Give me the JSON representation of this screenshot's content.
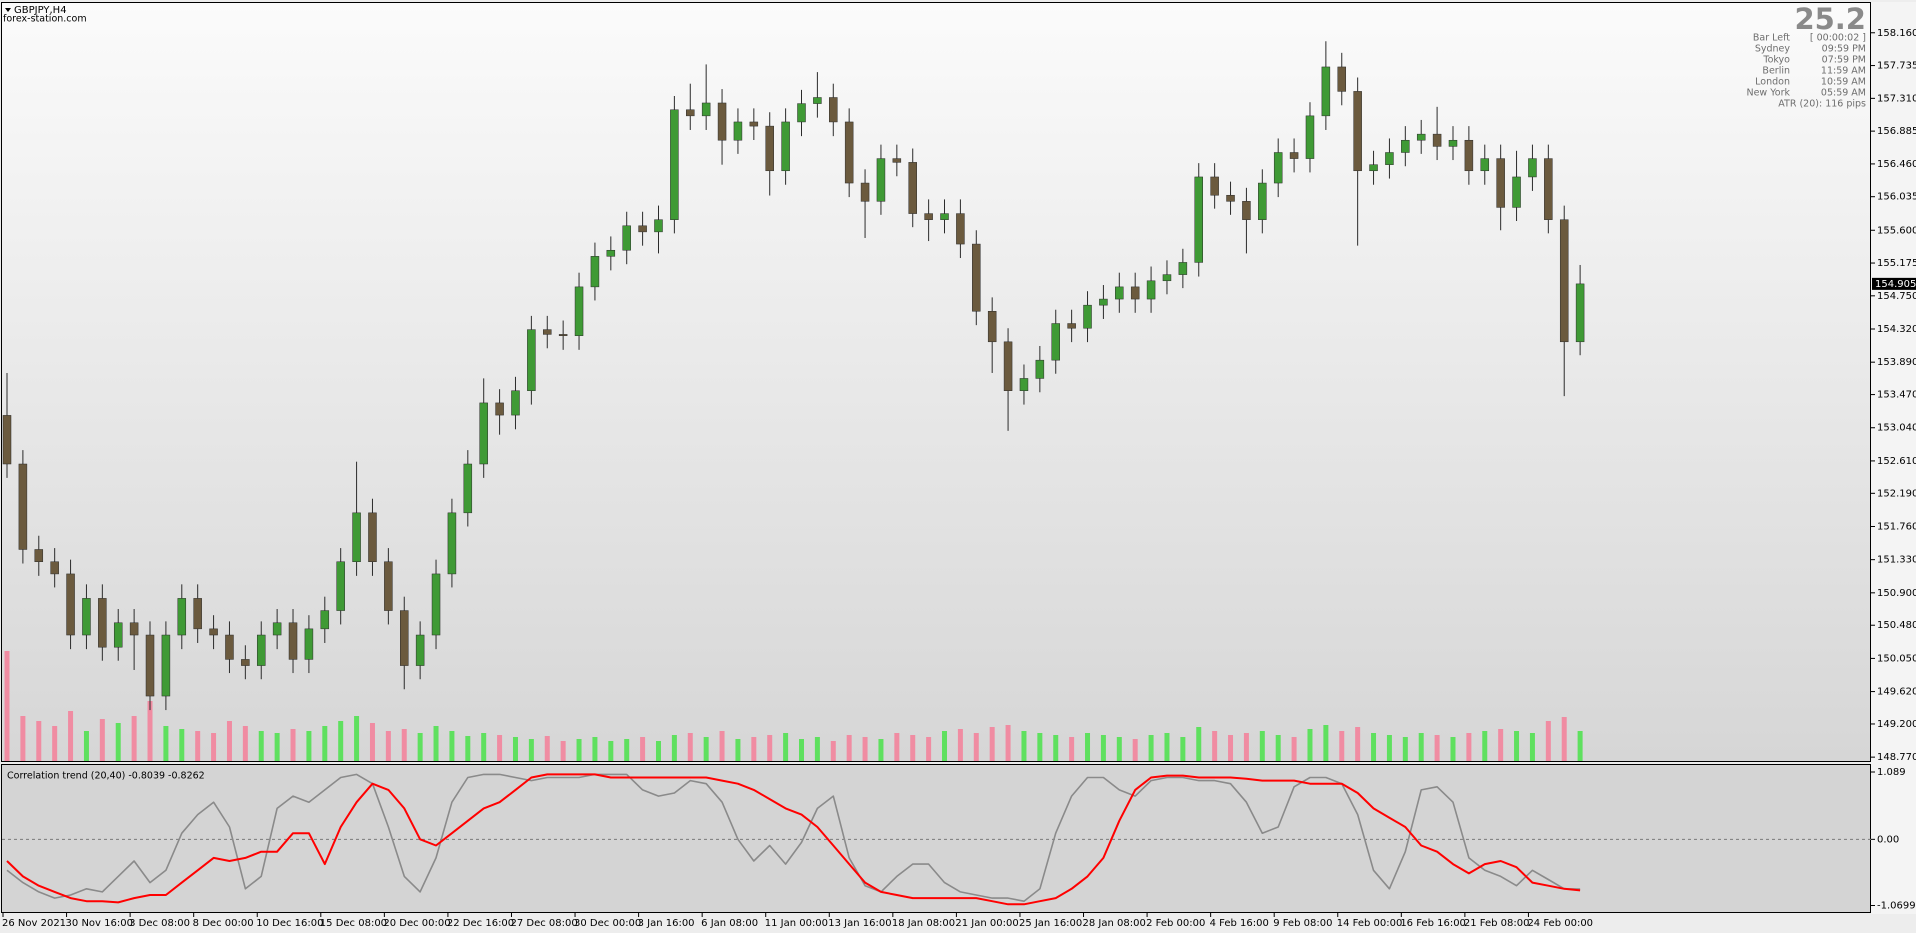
{
  "header": {
    "symbol": "GBPJPY,H4",
    "site": "forex-station.com",
    "big_value": "25.2"
  },
  "info_panel": {
    "rows": [
      [
        "Bar Left",
        "[ 00:00:02 ]"
      ],
      [
        "Sydney",
        "09:59 PM"
      ],
      [
        "Tokyo",
        "07:59 PM"
      ],
      [
        "Berlin",
        "11:59 AM"
      ],
      [
        "London",
        "10:59 AM"
      ],
      [
        "New York",
        "05:59 AM"
      ]
    ],
    "atr": "ATR (20): 116 pips"
  },
  "chart_data": [
    {
      "type": "candlestick",
      "categories": [
        "26 Nov 2021",
        null,
        null,
        null,
        "30 Nov 16:00",
        null,
        null,
        null,
        "3 Dec 08:00",
        null,
        null,
        null,
        "8 Dec 00:00",
        null,
        null,
        null,
        "10 Dec 16:00",
        null,
        null,
        null,
        "15 Dec 08:00",
        null,
        null,
        null,
        "20 Dec 00:00",
        null,
        null,
        null,
        "22 Dec 16:00",
        null,
        null,
        null,
        "27 Dec 08:00",
        null,
        null,
        null,
        "30 Dec 00:00",
        null,
        null,
        null,
        "3 Jan 16:00",
        null,
        null,
        null,
        "6 Jan 08:00",
        null,
        null,
        null,
        "11 Jan 00:00",
        null,
        null,
        null,
        "13 Jan 16:00",
        null,
        null,
        null,
        "18 Jan 08:00",
        null,
        null,
        null,
        "21 Jan 00:00",
        null,
        null,
        null,
        "25 Jan 16:00",
        null,
        null,
        null,
        "28 Jan 08:00",
        null,
        null,
        null,
        "2 Feb 00:00",
        null,
        null,
        null,
        "4 Feb 16:00",
        null,
        null,
        null,
        "9 Feb 08:00",
        null,
        null,
        null,
        "14 Feb 00:00",
        null,
        null,
        null,
        "16 Feb 16:00",
        null,
        null,
        null,
        "21 Feb 08:00",
        null,
        null,
        null,
        "24 Feb 00:00",
        null,
        null,
        null
      ],
      "open": [
        153.2,
        152.57,
        151.462,
        151.303,
        151.145,
        150.353,
        150.828,
        150.195,
        150.512,
        150.353,
        149.562,
        150.353,
        150.828,
        150.433,
        150.353,
        150.037,
        149.957,
        150.353,
        150.512,
        150.037,
        150.433,
        150.67,
        151.303,
        151.937,
        151.303,
        150.67,
        149.957,
        150.353,
        151.145,
        151.937,
        152.57,
        153.362,
        153.204,
        153.52,
        154.312,
        154.25,
        154.233,
        154.866,
        155.262,
        155.341,
        155.658,
        155.579,
        155.737,
        157.162,
        157.083,
        157.25,
        156.767,
        157.004,
        156.95,
        156.371,
        157.004,
        157.242,
        157.321,
        157.004,
        156.212,
        155.975,
        156.529,
        156.48,
        155.816,
        155.737,
        155.816,
        155.421,
        154.55,
        154.154,
        153.52,
        153.679,
        153.916,
        154.391,
        154.33,
        154.629,
        154.708,
        154.866,
        154.708,
        154.945,
        155.025,
        155.183,
        156.291,
        156.054,
        155.975,
        155.737,
        156.212,
        156.608,
        156.529,
        157.083,
        157.717,
        157.4,
        156.371,
        156.45,
        156.608,
        156.767,
        156.846,
        156.687,
        156.767,
        156.371,
        156.529,
        155.896,
        156.291,
        156.529,
        155.737,
        154.154
      ],
      "high": [
        153.75,
        152.75,
        151.64,
        151.48,
        151.33,
        151.01,
        151.01,
        150.69,
        150.69,
        150.53,
        150.53,
        151.01,
        151.01,
        150.61,
        150.53,
        150.22,
        150.53,
        150.69,
        150.69,
        150.61,
        150.85,
        151.48,
        152.6,
        152.12,
        151.48,
        150.85,
        150.53,
        151.33,
        152.12,
        152.75,
        153.68,
        153.54,
        153.7,
        154.49,
        154.49,
        154.43,
        155.05,
        155.44,
        155.52,
        155.84,
        155.84,
        155.92,
        157.34,
        157.5,
        157.75,
        157.43,
        157.18,
        157.18,
        157.13,
        157.18,
        157.42,
        157.65,
        157.5,
        157.18,
        156.39,
        156.71,
        156.71,
        156.66,
        156.0,
        156.0,
        156.0,
        155.6,
        154.73,
        154.33,
        153.86,
        154.1,
        154.57,
        154.57,
        154.81,
        154.89,
        155.05,
        155.05,
        155.13,
        155.21,
        155.36,
        156.47,
        156.47,
        156.23,
        156.15,
        156.39,
        156.79,
        156.79,
        157.26,
        158.05,
        157.9,
        157.58,
        156.63,
        156.79,
        156.95,
        157.03,
        157.2,
        156.95,
        156.95,
        156.71,
        156.71,
        156.63,
        156.71,
        156.71,
        155.92,
        155.15
      ],
      "low": [
        152.39,
        151.28,
        151.12,
        150.97,
        150.17,
        150.17,
        150.02,
        150.02,
        149.9,
        149.38,
        149.38,
        150.17,
        150.25,
        150.17,
        149.86,
        149.78,
        149.78,
        150.17,
        149.86,
        149.86,
        150.25,
        150.49,
        151.12,
        151.12,
        150.49,
        149.65,
        149.78,
        150.17,
        150.97,
        151.76,
        152.39,
        152.95,
        153.02,
        153.34,
        154.07,
        154.05,
        154.05,
        154.69,
        155.08,
        155.16,
        155.4,
        155.3,
        155.56,
        156.9,
        156.9,
        156.45,
        156.59,
        156.77,
        156.05,
        156.19,
        156.82,
        157.06,
        156.82,
        156.03,
        155.5,
        155.8,
        156.3,
        155.64,
        155.46,
        155.56,
        155.24,
        154.37,
        153.75,
        153.0,
        153.34,
        153.5,
        153.74,
        154.15,
        154.15,
        154.45,
        154.53,
        154.53,
        154.53,
        154.77,
        154.85,
        155.0,
        155.88,
        155.8,
        155.3,
        155.56,
        156.03,
        156.35,
        156.35,
        156.9,
        157.22,
        155.4,
        156.19,
        156.27,
        156.43,
        156.59,
        156.51,
        156.51,
        156.19,
        156.19,
        155.6,
        155.72,
        156.11,
        155.56,
        153.45,
        153.98
      ],
      "close": [
        152.57,
        151.462,
        151.303,
        151.145,
        150.353,
        150.828,
        150.195,
        150.512,
        150.353,
        149.562,
        150.353,
        150.828,
        150.433,
        150.353,
        150.037,
        149.957,
        150.353,
        150.512,
        150.037,
        150.433,
        150.67,
        151.303,
        151.937,
        151.303,
        150.67,
        149.957,
        150.353,
        151.145,
        151.937,
        152.57,
        153.362,
        153.204,
        153.52,
        154.312,
        154.25,
        154.233,
        154.866,
        155.262,
        155.341,
        155.658,
        155.579,
        155.737,
        157.162,
        157.083,
        157.25,
        156.767,
        157.004,
        156.95,
        156.371,
        157.004,
        157.242,
        157.321,
        157.004,
        156.212,
        155.975,
        156.529,
        156.48,
        155.816,
        155.737,
        155.816,
        155.421,
        154.55,
        154.154,
        153.52,
        153.679,
        153.916,
        154.391,
        154.33,
        154.629,
        154.708,
        154.866,
        154.708,
        154.945,
        155.025,
        155.183,
        156.291,
        156.054,
        155.975,
        155.737,
        156.212,
        156.608,
        156.529,
        157.083,
        157.717,
        157.4,
        156.371,
        156.45,
        156.608,
        156.767,
        156.846,
        156.687,
        156.767,
        156.371,
        156.529,
        155.896,
        156.291,
        156.529,
        155.737,
        154.154,
        154.905
      ],
      "volumes": [
        110,
        45,
        40,
        35,
        50,
        30,
        42,
        38,
        45,
        60,
        35,
        32,
        30,
        28,
        40,
        35,
        30,
        28,
        32,
        30,
        35,
        40,
        45,
        38,
        30,
        32,
        28,
        35,
        30,
        25,
        28,
        26,
        24,
        22,
        25,
        20,
        22,
        24,
        20,
        22,
        24,
        20,
        26,
        28,
        24,
        30,
        22,
        24,
        26,
        28,
        22,
        24,
        20,
        26,
        24,
        22,
        28,
        26,
        24,
        30,
        32,
        28,
        34,
        36,
        30,
        28,
        26,
        24,
        28,
        26,
        24,
        22,
        26,
        28,
        24,
        34,
        30,
        26,
        28,
        30,
        26,
        24,
        32,
        36,
        30,
        34,
        28,
        26,
        24,
        28,
        26,
        24,
        28,
        30,
        32,
        30,
        28,
        40,
        44,
        30
      ],
      "up_color": "#3f9a35",
      "down_color": "#6b5a3e",
      "wick_color": "#2b2b2b",
      "volume_up_color": "#5fe05f",
      "volume_down_color": "#f08ca2",
      "last_price": 154.905,
      "ylim": [
        148.72,
        158.52
      ],
      "yticks": [
        {
          "value": 158.16,
          "label": "158.160"
        },
        {
          "value": 157.735,
          "label": "157.735"
        },
        {
          "value": 157.31,
          "label": "157.310"
        },
        {
          "value": 156.885,
          "label": "156.885"
        },
        {
          "value": 156.46,
          "label": "156.460"
        },
        {
          "value": 156.035,
          "label": "156.035"
        },
        {
          "value": 155.6,
          "label": "155.600"
        },
        {
          "value": 155.175,
          "label": "155.175"
        },
        {
          "value": 154.75,
          "label": "154.750"
        },
        {
          "value": 154.32,
          "label": "154.320"
        },
        {
          "value": 153.89,
          "label": "153.890"
        },
        {
          "value": 153.47,
          "label": "153.470"
        },
        {
          "value": 153.04,
          "label": "153.040"
        },
        {
          "value": 152.61,
          "label": "152.610"
        },
        {
          "value": 152.19,
          "label": "152.190"
        },
        {
          "value": 151.76,
          "label": "151.760"
        },
        {
          "value": 151.33,
          "label": "151.330"
        },
        {
          "value": 150.9,
          "label": "150.900"
        },
        {
          "value": 150.48,
          "label": "150.480"
        },
        {
          "value": 150.05,
          "label": "150.050"
        },
        {
          "value": 149.62,
          "label": "149.620"
        },
        {
          "value": 149.2,
          "label": "149.200"
        },
        {
          "value": 148.77,
          "label": "148.770"
        }
      ],
      "grid": false
    },
    {
      "type": "line",
      "title": "Correlation trend (20,40) -0.8039 -0.8262",
      "series": [
        {
          "name": "trend",
          "color": "#8a8a8a",
          "values": [
            -0.5,
            -0.7,
            -0.85,
            -0.95,
            -0.9,
            -0.8,
            -0.85,
            -0.6,
            -0.35,
            -0.7,
            -0.5,
            0.1,
            0.4,
            0.6,
            0.2,
            -0.8,
            -0.6,
            0.5,
            0.7,
            0.6,
            0.8,
            1.0,
            1.05,
            0.9,
            0.2,
            -0.6,
            -0.85,
            -0.3,
            0.6,
            1.0,
            1.05,
            1.05,
            1.0,
            0.95,
            1.0,
            1.0,
            1.0,
            1.05,
            1.05,
            1.05,
            0.8,
            0.7,
            0.75,
            0.95,
            0.9,
            0.6,
            0.0,
            -0.35,
            -0.1,
            -0.4,
            -0.05,
            0.5,
            0.7,
            -0.3,
            -0.75,
            -0.85,
            -0.6,
            -0.4,
            -0.4,
            -0.7,
            -0.85,
            -0.9,
            -0.95,
            -0.95,
            -1.0,
            -0.8,
            0.1,
            0.7,
            1.0,
            1.0,
            0.8,
            0.7,
            0.95,
            1.0,
            1.0,
            0.95,
            0.95,
            0.9,
            0.6,
            0.1,
            0.2,
            0.85,
            1.0,
            1.0,
            0.9,
            0.4,
            -0.5,
            -0.8,
            -0.2,
            0.8,
            0.85,
            0.6,
            -0.3,
            -0.5,
            -0.6,
            -0.75,
            -0.5,
            -0.65,
            -0.8,
            -0.8039
          ]
        },
        {
          "name": "signal",
          "color": "#ff0000",
          "values": [
            -0.35,
            -0.6,
            -0.75,
            -0.85,
            -0.95,
            -1.0,
            -1.0,
            -1.02,
            -0.95,
            -0.9,
            -0.9,
            -0.7,
            -0.5,
            -0.3,
            -0.35,
            -0.3,
            -0.2,
            -0.2,
            0.1,
            0.1,
            -0.4,
            0.2,
            0.6,
            0.9,
            0.8,
            0.5,
            0.0,
            -0.1,
            0.1,
            0.3,
            0.5,
            0.6,
            0.8,
            1.0,
            1.05,
            1.05,
            1.05,
            1.05,
            1.0,
            1.0,
            1.0,
            1.0,
            1.0,
            1.0,
            1.0,
            0.95,
            0.9,
            0.8,
            0.65,
            0.5,
            0.4,
            0.2,
            -0.1,
            -0.4,
            -0.7,
            -0.85,
            -0.9,
            -0.95,
            -0.95,
            -0.95,
            -0.95,
            -0.95,
            -1.0,
            -1.05,
            -1.05,
            -1.0,
            -0.95,
            -0.8,
            -0.6,
            -0.3,
            0.3,
            0.8,
            1.0,
            1.03,
            1.03,
            1.0,
            1.0,
            1.0,
            0.98,
            0.95,
            0.95,
            0.95,
            0.9,
            0.9,
            0.9,
            0.75,
            0.5,
            0.35,
            0.2,
            -0.1,
            -0.2,
            -0.4,
            -0.55,
            -0.4,
            -0.35,
            -0.45,
            -0.7,
            -0.75,
            -0.8,
            -0.8262
          ]
        }
      ],
      "levels": [
        0
      ],
      "ylim": [
        -1.0699,
        1.089
      ],
      "yticks": [
        1.089,
        {
          "value": 0,
          "label": "0.00"
        },
        -1.0699
      ]
    }
  ]
}
